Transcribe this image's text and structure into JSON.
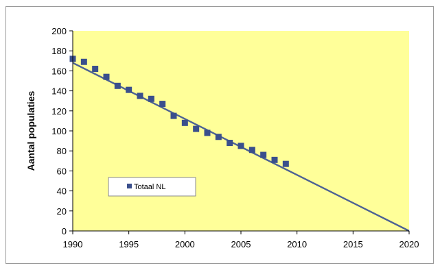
{
  "chart_data": {
    "type": "scatter",
    "title": "",
    "xlabel": "",
    "ylabel": "Aantal populaties",
    "xlim": [
      1990,
      2020
    ],
    "ylim": [
      0,
      200
    ],
    "xticks": [
      1990,
      1995,
      2000,
      2005,
      2010,
      2015,
      2020
    ],
    "yticks": [
      0,
      20,
      40,
      60,
      80,
      100,
      120,
      140,
      160,
      180,
      200
    ],
    "grid": false,
    "legend_position": "left, middle",
    "colors": {
      "plot_background": "#ffff99",
      "marker": "#3a4f8c",
      "trend_line": "#4d6294",
      "axis": "#000000"
    },
    "series": [
      {
        "name": "Totaal NL",
        "type": "scatter",
        "marker": "square",
        "x": [
          1990,
          1991,
          1992,
          1993,
          1994,
          1995,
          1996,
          1997,
          1998,
          1999,
          2000,
          2001,
          2002,
          2003,
          2004,
          2005,
          2006,
          2007,
          2008,
          2009
        ],
        "y": [
          172,
          169,
          162,
          154,
          145,
          141,
          135,
          132,
          127,
          115,
          108,
          102,
          98,
          94,
          88,
          85,
          81,
          76,
          71,
          67
        ]
      }
    ],
    "trend_line": {
      "type": "line",
      "x": [
        1990,
        2020
      ],
      "y": [
        168,
        0
      ]
    }
  }
}
